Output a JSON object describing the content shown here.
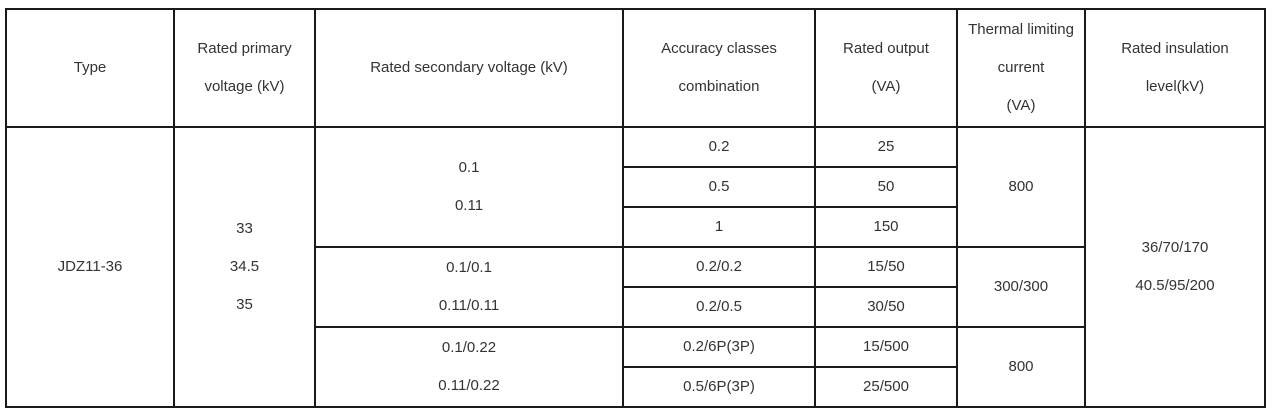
{
  "headers": {
    "type": "Type",
    "primary": [
      "Rated primary",
      "voltage (kV)"
    ],
    "secondary": "Rated secondary voltage (kV)",
    "accuracy": [
      "Accuracy classes",
      "combination"
    ],
    "output": [
      "Rated output",
      "(VA)"
    ],
    "thermal": [
      "Thermal limiting",
      "current",
      "(VA)"
    ],
    "insulation": [
      "Rated insulation",
      "level(kV)"
    ]
  },
  "type": "JDZ11-36",
  "primary_voltages": [
    "33",
    "34.5",
    "35"
  ],
  "insulation_levels": [
    "36/70/170",
    "40.5/95/200"
  ],
  "groups": [
    {
      "secondary": [
        "0.1",
        "0.11"
      ],
      "thermal": "800",
      "rows": [
        {
          "accuracy": "0.2",
          "output": "25"
        },
        {
          "accuracy": "0.5",
          "output": "50"
        },
        {
          "accuracy": "1",
          "output": "150"
        }
      ]
    },
    {
      "secondary": [
        "0.1/0.1",
        "0.11/0.11"
      ],
      "thermal": "300/300",
      "rows": [
        {
          "accuracy": "0.2/0.2",
          "output": "15/50"
        },
        {
          "accuracy": "0.2/0.5",
          "output": "30/50"
        }
      ]
    },
    {
      "secondary": [
        "0.1/0.22",
        "0.11/0.22"
      ],
      "thermal": "800",
      "rows": [
        {
          "accuracy": "0.2/6P(3P)",
          "output": "15/500"
        },
        {
          "accuracy": "0.5/6P(3P)",
          "output": "25/500"
        }
      ]
    }
  ]
}
